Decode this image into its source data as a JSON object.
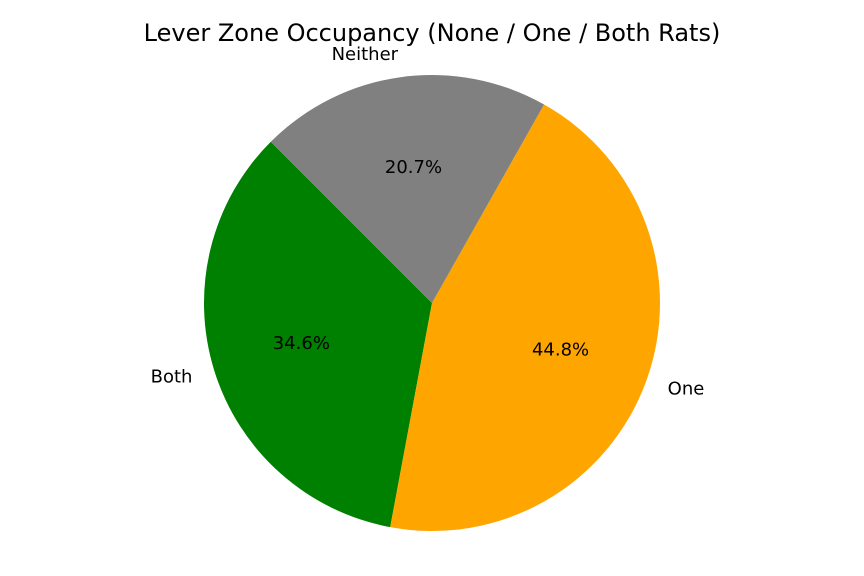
{
  "chart_data": {
    "type": "pie",
    "title": "Lever Zone Occupancy (None / One / Both Rats)",
    "categories": [
      "Both",
      "One",
      "Neither"
    ],
    "values": [
      34.6,
      44.8,
      20.7
    ],
    "percent_labels": [
      "34.6%",
      "44.8%",
      "20.7%"
    ],
    "colors": [
      "#008000",
      "#ffa500",
      "#808080"
    ],
    "start_angle_deg": 135,
    "direction": "counterclockwise",
    "legend": "none"
  }
}
